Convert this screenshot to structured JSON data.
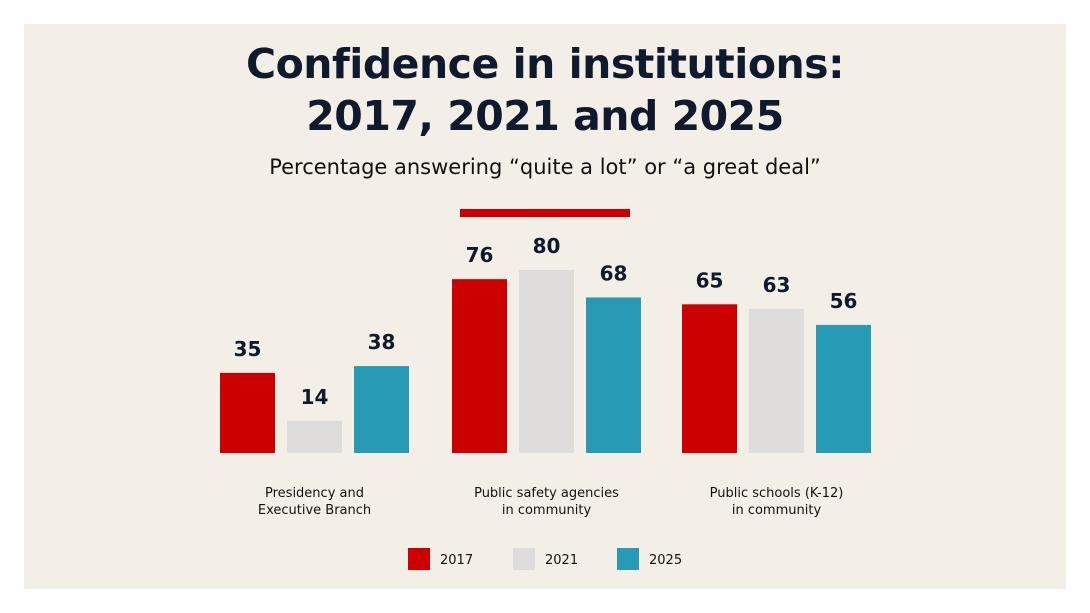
{
  "chart_data": {
    "type": "bar",
    "title": "Confidence in institutions:\n2017, 2021 and 2025",
    "subtitle": "Percentage answering “quite a lot” or “a great deal”",
    "categories": [
      "Presidency and\nExecutive Branch",
      "Public safety agencies\nin community",
      "Public schools (K-12)\nin community"
    ],
    "series": [
      {
        "name": "2017",
        "color": "#cc0000",
        "values": [
          35,
          76,
          65
        ]
      },
      {
        "name": "2021",
        "color": "#dedddc",
        "values": [
          14,
          80,
          63
        ]
      },
      {
        "name": "2025",
        "color": "#279bb5",
        "values": [
          38,
          68,
          56
        ]
      }
    ],
    "legend": "bottom"
  }
}
